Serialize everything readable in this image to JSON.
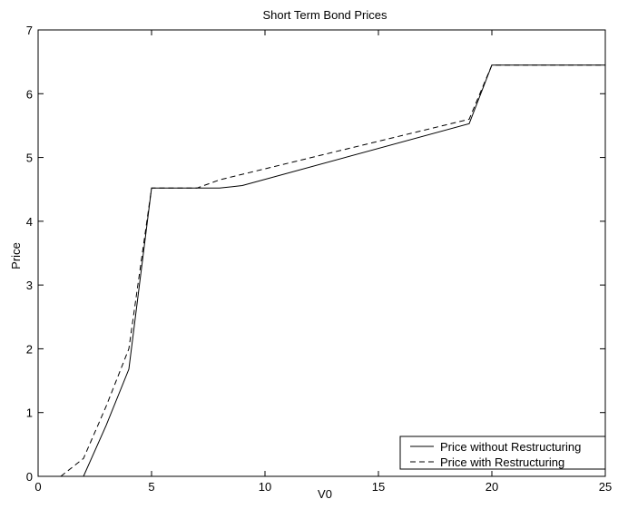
{
  "chart_data": {
    "type": "line",
    "title": "Short Term Bond Prices",
    "xlabel": "V0",
    "ylabel": "Price",
    "xlim": [
      0,
      25
    ],
    "ylim": [
      0,
      7
    ],
    "xticks": [
      0,
      5,
      10,
      15,
      20,
      25
    ],
    "yticks": [
      0,
      1,
      2,
      3,
      4,
      5,
      6,
      7
    ],
    "xtick_labels": [
      "0",
      "5",
      "10",
      "15",
      "20",
      "25"
    ],
    "ytick_labels": [
      "0",
      "1",
      "2",
      "3",
      "4",
      "5",
      "6",
      "7"
    ],
    "grid": false,
    "legend_position": "bottom-right",
    "series": [
      {
        "name": "Price without Restructuring",
        "style": "solid",
        "color": "#000000",
        "x": [
          2,
          3,
          4,
          5,
          6,
          7,
          8,
          9,
          19,
          20,
          21,
          22,
          23,
          24,
          25
        ],
        "y": [
          0,
          0.8,
          1.68,
          4.52,
          4.52,
          4.52,
          4.52,
          4.56,
          5.53,
          6.45,
          6.45,
          6.45,
          6.45,
          6.45,
          6.45
        ]
      },
      {
        "name": "Price with Restructuring",
        "style": "dashed",
        "color": "#000000",
        "x": [
          1,
          2,
          3,
          4,
          5,
          6,
          7,
          8,
          19,
          20,
          21,
          22,
          23,
          24,
          25
        ],
        "y": [
          0,
          0.28,
          1.1,
          2.0,
          4.52,
          4.52,
          4.52,
          4.65,
          5.6,
          6.45,
          6.45,
          6.45,
          6.45,
          6.45,
          6.45
        ]
      }
    ]
  }
}
